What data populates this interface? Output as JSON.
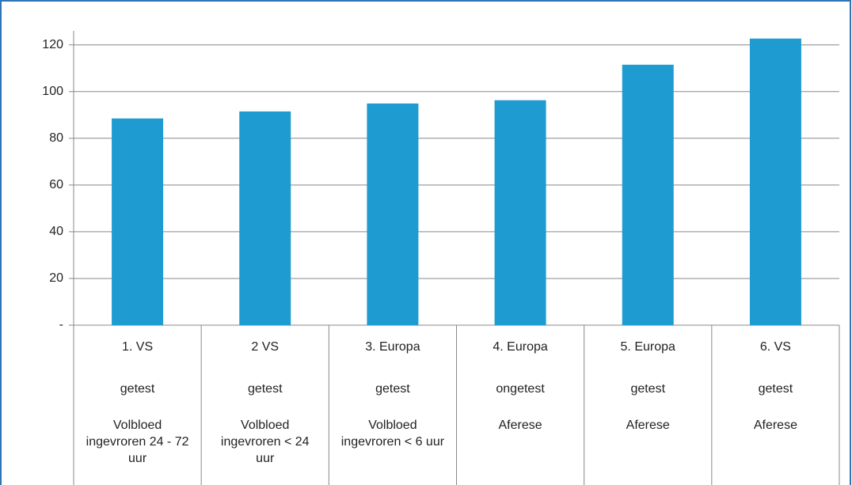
{
  "chart_data": {
    "type": "bar",
    "categories": [
      [
        "1. VS",
        "getest",
        "Volbloed ingevroren 24 - 72 uur"
      ],
      [
        "2 VS",
        "getest",
        "Volbloed ingevroren < 24 uur"
      ],
      [
        "3. Europa",
        "getest",
        "Volbloed ingevroren < 6 uur"
      ],
      [
        "4. Europa",
        "ongetest",
        "Aferese"
      ],
      [
        "5. Europa",
        "getest",
        "Aferese"
      ],
      [
        "6. VS",
        "getest",
        "Aferese"
      ]
    ],
    "values": [
      88.5,
      91.5,
      94.9,
      96.3,
      111.5,
      122.7
    ],
    "color": "#1e9bd0",
    "ylim": [
      0,
      126
    ],
    "yticks": [
      {
        "value": 0,
        "label": "-"
      },
      20,
      40,
      60,
      80,
      100,
      120
    ],
    "grid": true
  }
}
